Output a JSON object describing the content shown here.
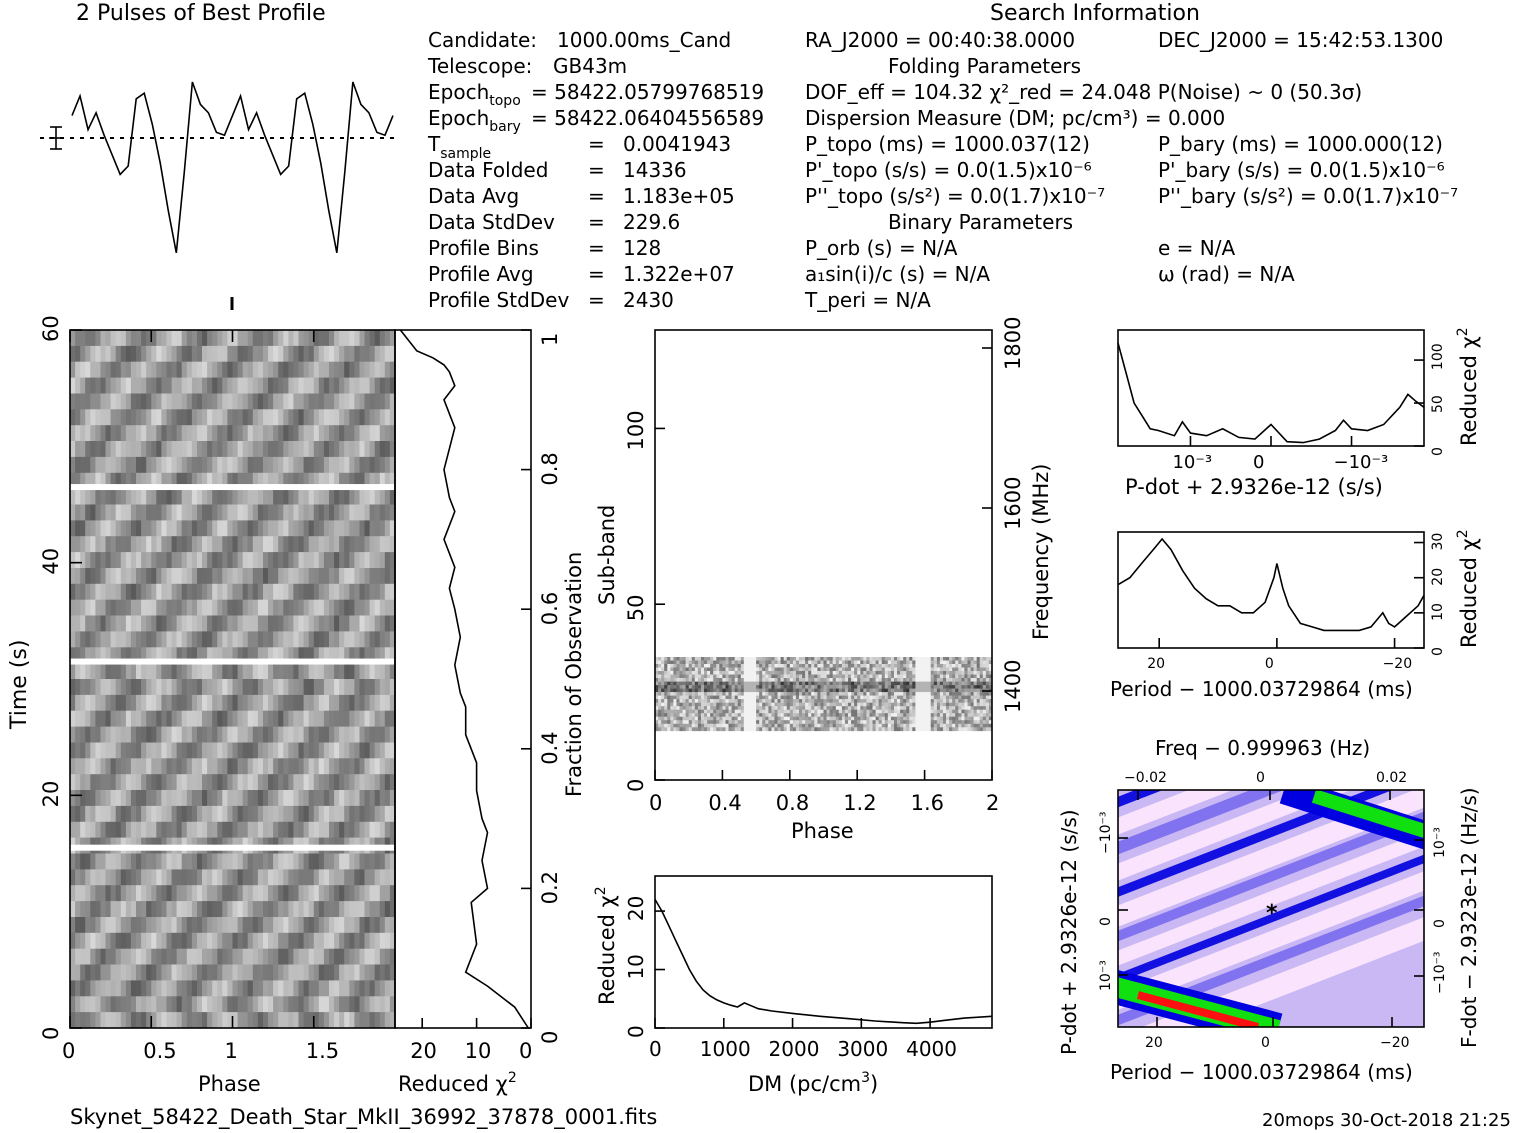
{
  "title": "2 Pulses of Best Profile",
  "search_info_title": "Search Information",
  "candidate_info": [
    [
      "Candidate:",
      "1000.00ms_Cand"
    ],
    [
      "Telescope:",
      "GB43m"
    ],
    [
      "Epoch_topo",
      "= 58422.05799768519"
    ],
    [
      "Epoch_bary",
      "= 58422.06404556589"
    ],
    [
      "T_sample",
      "=",
      "0.0041943"
    ],
    [
      "Data Folded",
      "=",
      "14336"
    ],
    [
      "Data Avg",
      "=",
      "1.183e+05"
    ],
    [
      "Data StdDev",
      "=",
      "229.6"
    ],
    [
      "Profile Bins",
      "=",
      "128"
    ],
    [
      "Profile Avg",
      "=",
      "1.322e+07"
    ],
    [
      "Profile StdDev",
      "=",
      "2430"
    ]
  ],
  "search_info": {
    "ra": "RA_J2000 = 00:40:38.0000",
    "dec": "DEC_J2000 = 15:42:53.1300",
    "folding_title": "Folding Parameters",
    "dof": "DOF_eff = 104.32  χ²_red = 24.048  P(Noise) ~ 0   (50.3σ)",
    "dm": "Dispersion Measure (DM; pc/cm³) = 0.000",
    "p_topo": "P_topo (ms) =  1000.037(12)",
    "p_bary": "P_bary (ms) =  1000.000(12)",
    "pd_topo": "P'_topo (s/s) = 0.0(1.5)x10⁻⁶",
    "pd_bary": "P'_bary (s/s) = 0.0(1.5)x10⁻⁶",
    "pdd_topo": "P''_topo (s/s²) = 0.0(1.7)x10⁻⁷",
    "pdd_bary": "P''_bary (s/s²) = 0.0(1.7)x10⁻⁷",
    "binary_title": "Binary Parameters",
    "p_orb": "P_orb (s) = N/A",
    "ecc": "e = N/A",
    "a1sini": "a₁sin(i)/c (s) = N/A",
    "omega": "ω (rad) = N/A",
    "t_peri": "T_peri = N/A"
  },
  "footer": {
    "filename": "Skynet_58422_Death_Star_MkII_36992_37878_0001.fits",
    "stamp": "20mops 30-Oct-2018 21:25"
  },
  "colors": {
    "ink": "#000000",
    "ppdot_low": "#ffe8ff",
    "ppdot_mid": "#7a6cf0",
    "ppdot_blue": "#0000e0",
    "ppdot_green": "#10e010",
    "ppdot_red": "#ff1010"
  },
  "chart_data": [
    {
      "id": "profile",
      "type": "line",
      "title": "2 Pulses of Best Profile",
      "x": [
        0,
        0.05,
        0.1,
        0.15,
        0.2,
        0.25,
        0.3,
        0.35,
        0.4,
        0.45,
        0.5,
        0.55,
        0.6,
        0.65,
        0.7,
        0.75,
        0.8,
        0.85,
        0.9,
        0.95,
        1.0,
        1.05,
        1.1,
        1.15,
        1.2,
        1.25,
        1.3,
        1.35,
        1.4,
        1.45,
        1.5,
        1.55,
        1.6,
        1.65,
        1.7,
        1.75,
        1.8,
        1.85,
        1.9,
        1.95,
        2.0
      ],
      "values": [
        0.8,
        1.5,
        0.3,
        0.9,
        0.1,
        -0.6,
        -1.3,
        -1.0,
        1.4,
        1.6,
        0.5,
        -0.9,
        -2.6,
        -4.1,
        -1.2,
        2.0,
        1.2,
        0.9,
        0.2,
        0.1,
        0.8,
        1.5,
        0.3,
        0.9,
        0.1,
        -0.6,
        -1.3,
        -1.0,
        1.4,
        1.6,
        0.5,
        -0.9,
        -2.6,
        -4.1,
        -1.2,
        2.0,
        1.2,
        0.9,
        0.2,
        0.1,
        0.8
      ]
    },
    {
      "id": "time-phase",
      "type": "heatmap",
      "xlabel": "Phase",
      "ylabel": "Time (s)",
      "x_ticks": [
        "0",
        "0.5",
        "1",
        "1.5"
      ],
      "y_ticks": [
        "0",
        "20",
        "40",
        "60"
      ],
      "xlim": [
        0,
        2
      ],
      "ylim": [
        0,
        60
      ],
      "gap_times": [
        15.5,
        31.5,
        46.5
      ]
    },
    {
      "id": "time-chi2",
      "type": "line",
      "xlabel": "Reduced χ²",
      "ylabel": "Fraction of Observation",
      "x_ticks": [
        "20",
        "10",
        "0"
      ],
      "y_ticks": [
        "0",
        "0.2",
        "0.4",
        "0.6",
        "0.8",
        "1"
      ],
      "xlim": [
        25,
        0
      ],
      "ylim": [
        0,
        1
      ],
      "x": [
        0.5,
        3,
        8,
        12,
        10,
        11,
        8,
        9,
        8,
        9,
        10,
        10,
        12,
        12,
        13,
        14,
        13,
        14,
        15,
        14,
        16,
        14,
        15,
        16,
        15,
        14,
        15,
        16,
        14,
        15,
        16,
        18,
        21,
        23,
        24
      ],
      "y": [
        0,
        0.03,
        0.06,
        0.08,
        0.12,
        0.18,
        0.2,
        0.24,
        0.28,
        0.3,
        0.34,
        0.38,
        0.42,
        0.46,
        0.48,
        0.52,
        0.56,
        0.6,
        0.63,
        0.66,
        0.7,
        0.74,
        0.76,
        0.8,
        0.83,
        0.86,
        0.88,
        0.9,
        0.92,
        0.94,
        0.95,
        0.96,
        0.97,
        0.99,
        1.0
      ]
    },
    {
      "id": "subband-phase",
      "type": "heatmap",
      "xlabel": "Phase",
      "ylabel": "Sub-band",
      "y2label": "Frequency (MHz)",
      "x_ticks": [
        "0",
        "0.4",
        "0.8",
        "1.2",
        "1.6",
        "2"
      ],
      "y_ticks": [
        "0",
        "50",
        "100"
      ],
      "y2_ticks": [
        "1400",
        "1600",
        "1800"
      ],
      "xlim": [
        0,
        2
      ],
      "ylim": [
        0,
        128
      ],
      "occupied_subbands": [
        14,
        35
      ]
    },
    {
      "id": "dm-chi2",
      "type": "line",
      "xlabel": "DM (pc/cm³)",
      "ylabel": "Reduced χ²",
      "x_ticks": [
        "0",
        "1000",
        "2000",
        "3000",
        "4000"
      ],
      "y_ticks": [
        "0",
        "10",
        "20"
      ],
      "xlim": [
        0,
        4900
      ],
      "ylim": [
        0,
        26
      ],
      "x": [
        0,
        100,
        200,
        300,
        400,
        500,
        600,
        700,
        800,
        900,
        1000,
        1100,
        1200,
        1300,
        1400,
        1500,
        1700,
        2000,
        2400,
        2800,
        3200,
        3600,
        3800,
        4000,
        4200,
        4500,
        4900
      ],
      "y": [
        22,
        20,
        17.5,
        15,
        12.5,
        10,
        8,
        6.5,
        5.5,
        4.8,
        4.3,
        3.9,
        3.6,
        4.3,
        3.8,
        3.3,
        2.9,
        2.5,
        2.0,
        1.6,
        1.2,
        0.9,
        0.8,
        1.0,
        1.3,
        1.7,
        2.0
      ]
    },
    {
      "id": "pdot-chi2",
      "type": "line",
      "xlabel": "P-dot + 2.9326e-12 (s/s)",
      "ylabel": "Reduced χ²",
      "x_ticks": [
        "10⁻³",
        "0",
        "−10⁻³"
      ],
      "y_ticks": [
        "0",
        "50",
        "100"
      ],
      "xlim": [
        0.0019,
        -0.0019
      ],
      "ylim": [
        0,
        135
      ],
      "x": [
        0.0019,
        0.0018,
        0.0017,
        0.0016,
        0.0015,
        0.0014,
        0.0012,
        0.0011,
        0.001,
        0.0008,
        0.0006,
        0.0004,
        0.0002,
        0.0,
        -0.0002,
        -0.0004,
        -0.0006,
        -0.0008,
        -0.0009,
        -0.001,
        -0.0012,
        -0.0014,
        -0.0016,
        -0.0017,
        -0.0018,
        -0.0019
      ],
      "y": [
        120,
        85,
        50,
        35,
        20,
        18,
        12,
        28,
        15,
        12,
        20,
        10,
        8,
        25,
        5,
        4,
        8,
        18,
        30,
        20,
        18,
        25,
        45,
        60,
        52,
        45
      ]
    },
    {
      "id": "period-chi2",
      "type": "line",
      "xlabel": "Period − 1000.03729864 (ms)",
      "ylabel": "Reduced χ²",
      "x_ticks": [
        "20",
        "0",
        "−20"
      ],
      "y_ticks": [
        "0",
        "10",
        "20",
        "30"
      ],
      "xlim": [
        27,
        -25
      ],
      "ylim": [
        0,
        33
      ],
      "x": [
        27,
        25,
        23,
        21,
        19.5,
        18,
        16,
        14,
        12,
        10,
        8,
        6,
        4,
        2,
        0.5,
        0,
        -1,
        -2,
        -4,
        -6,
        -8,
        -10,
        -12,
        -14,
        -16,
        -17,
        -18,
        -19,
        -20,
        -22,
        -24,
        -25
      ],
      "y": [
        18,
        20,
        24,
        28,
        31,
        28,
        22,
        17,
        14,
        12,
        12,
        10,
        10,
        13,
        20,
        24,
        17,
        12,
        7,
        6,
        5,
        5,
        5,
        5,
        6,
        8,
        10,
        7,
        6,
        9,
        12,
        15
      ]
    },
    {
      "id": "ppdot-plane",
      "type": "heatmap",
      "xlabel": "Period − 1000.03729864 (ms)",
      "x2label": "Freq − 0.999963 (Hz)",
      "ylabel": "P-dot + 2.9326e-12 (s/s)",
      "y2label": "F-dot − 2.9323e-12 (Hz/s)",
      "x_ticks": [
        "20",
        "0",
        "−20"
      ],
      "x2_ticks": [
        "−0.02",
        "0",
        "0.02"
      ],
      "y_ticks": [
        "10⁻³",
        "0",
        "−10⁻³"
      ],
      "y2_ticks": [
        "−10⁻³",
        "0",
        "10⁻³"
      ],
      "marker": "*"
    }
  ]
}
